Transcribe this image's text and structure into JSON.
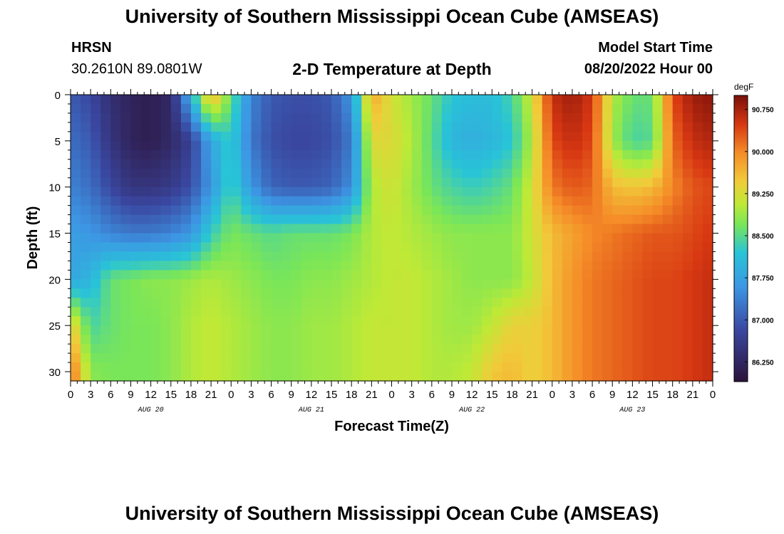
{
  "header": {
    "title": "University of Southern Mississippi Ocean Cube (AMSEAS)",
    "station": "HRSN",
    "coordinates": "30.2610N  89.0801W",
    "subtitle": "2-D Temperature at Depth",
    "model_label": "Model Start Time",
    "model_time": "08/20/2022 Hour 00"
  },
  "footer": {
    "title": "University of Southern Mississippi Ocean Cube (AMSEAS)"
  },
  "chart_data": {
    "type": "heatmap",
    "xlabel": "Forecast Time(Z)",
    "ylabel": "Depth (ft)",
    "xlim": [
      0,
      96
    ],
    "ylim": [
      31,
      0
    ],
    "x_tick_labels": [
      "0",
      "3",
      "6",
      "9",
      "12",
      "15",
      "18",
      "21",
      "0",
      "3",
      "6",
      "9",
      "12",
      "15",
      "18",
      "21",
      "0",
      "3",
      "6",
      "9",
      "12",
      "15",
      "18",
      "21",
      "0",
      "3",
      "6",
      "9",
      "12",
      "15",
      "18",
      "21",
      "0"
    ],
    "y_ticks": [
      0,
      5,
      10,
      15,
      20,
      25,
      30
    ],
    "date_labels": [
      {
        "label": "AUG 20",
        "hour": 12
      },
      {
        "label": "AUG 21",
        "hour": 36
      },
      {
        "label": "AUG 22",
        "hour": 60
      },
      {
        "label": "AUG 23",
        "hour": 84
      }
    ],
    "colorbar": {
      "unit": "degF",
      "min": 85.9,
      "max": 91.0,
      "tick_labels": [
        "90.750",
        "90.000",
        "89.250",
        "88.500",
        "87.750",
        "87.000",
        "86.250"
      ],
      "tick_values": [
        90.75,
        90.0,
        89.25,
        88.5,
        87.75,
        87.0,
        86.25
      ]
    },
    "depths": [
      0,
      5,
      10,
      15,
      20,
      25,
      30
    ],
    "hours": [
      0,
      3,
      6,
      9,
      12,
      15,
      18,
      21,
      24,
      27,
      30,
      33,
      36,
      39,
      42,
      45,
      48,
      51,
      54,
      57,
      60,
      63,
      66,
      69,
      72,
      75,
      78,
      81,
      84,
      87,
      90,
      93,
      96
    ],
    "values": [
      [
        87.0,
        86.8,
        86.4,
        86.2,
        86.1,
        86.3,
        88.0,
        89.8,
        88.6,
        87.4,
        87.0,
        86.9,
        86.9,
        87.0,
        87.6,
        89.8,
        89.2,
        88.9,
        88.6,
        88.2,
        88.1,
        88.1,
        88.4,
        89.2,
        90.6,
        90.8,
        90.5,
        89.0,
        88.6,
        88.6,
        90.4,
        90.8,
        90.9
      ],
      [
        87.2,
        87.0,
        86.5,
        86.2,
        86.1,
        86.3,
        86.7,
        87.8,
        88.3,
        87.3,
        86.9,
        86.8,
        86.8,
        86.9,
        87.3,
        89.3,
        89.3,
        89.0,
        88.5,
        88.0,
        87.9,
        88.0,
        88.2,
        89.0,
        90.4,
        90.6,
        90.4,
        88.9,
        88.4,
        88.5,
        90.2,
        90.6,
        90.7
      ],
      [
        87.4,
        87.2,
        86.8,
        86.5,
        86.5,
        86.6,
        86.9,
        87.6,
        88.4,
        87.6,
        87.1,
        87.0,
        87.0,
        87.1,
        87.5,
        89.0,
        89.2,
        88.9,
        88.6,
        88.4,
        88.3,
        88.4,
        88.6,
        89.2,
        90.1,
        90.3,
        90.2,
        89.6,
        89.5,
        89.6,
        90.0,
        90.3,
        90.4
      ],
      [
        87.7,
        87.6,
        87.4,
        87.3,
        87.3,
        87.4,
        87.6,
        88.3,
        88.7,
        88.6,
        88.5,
        88.6,
        88.6,
        88.6,
        88.7,
        89.0,
        89.1,
        89.0,
        88.9,
        88.8,
        88.8,
        88.8,
        88.8,
        89.2,
        89.6,
        89.8,
        90.0,
        90.1,
        90.2,
        90.3,
        90.3,
        90.4,
        90.5
      ],
      [
        87.8,
        88.0,
        88.6,
        88.7,
        88.8,
        88.8,
        88.9,
        89.0,
        88.9,
        88.8,
        88.7,
        88.7,
        88.8,
        88.8,
        88.9,
        89.0,
        89.1,
        89.1,
        89.0,
        88.9,
        88.8,
        88.8,
        88.8,
        89.1,
        89.6,
        89.9,
        90.1,
        90.2,
        90.3,
        90.4,
        90.4,
        90.5,
        90.6
      ],
      [
        89.5,
        88.4,
        88.6,
        88.7,
        88.7,
        88.8,
        89.0,
        89.1,
        89.0,
        88.9,
        88.8,
        88.8,
        88.9,
        88.9,
        89.0,
        89.1,
        89.1,
        89.1,
        89.0,
        88.9,
        88.9,
        89.1,
        89.4,
        89.4,
        89.6,
        89.9,
        90.1,
        90.2,
        90.3,
        90.4,
        90.4,
        90.5,
        90.6
      ],
      [
        90.2,
        88.8,
        88.7,
        88.7,
        88.7,
        88.8,
        89.0,
        89.1,
        89.0,
        88.9,
        88.8,
        88.8,
        88.9,
        88.9,
        89.0,
        89.1,
        89.1,
        89.1,
        89.0,
        89.0,
        89.1,
        89.5,
        89.6,
        89.4,
        89.6,
        89.9,
        90.1,
        90.2,
        90.3,
        90.4,
        90.4,
        90.5,
        90.6
      ]
    ]
  }
}
